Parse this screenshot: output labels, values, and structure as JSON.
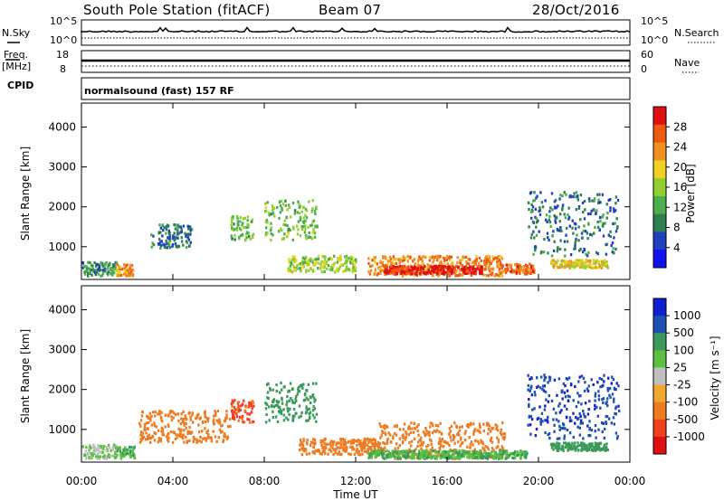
{
  "header": {
    "station": "South Pole Station (fitACF)",
    "beam": "Beam 07",
    "date": "28/Oct/2016"
  },
  "nsky_panel": {
    "left_label": "N.Sky",
    "left_ticks": [
      "10^5",
      "10^0"
    ],
    "right_label": "N.Search",
    "right_ticks": [
      "10^5",
      "10^0"
    ]
  },
  "freq_panel": {
    "left_label_top": "Freq.",
    "left_label_bottom": "[MHz]",
    "left_ticks": [
      "18",
      "8"
    ],
    "right_label": "Nave",
    "right_ticks": [
      "60",
      "0"
    ]
  },
  "cpid_panel": {
    "label": "CPID",
    "text": "normalsound (fast) 157 RF"
  },
  "x_axis": {
    "label": "Time UT",
    "ticks": [
      "00:00",
      "04:00",
      "08:00",
      "12:00",
      "16:00",
      "20:00",
      "00:00"
    ]
  },
  "colors": {
    "power": [
      "#1010f0",
      "#2040c0",
      "#2f7f4f",
      "#4cae4c",
      "#90d030",
      "#f0d020",
      "#f09020",
      "#f05a10",
      "#e01010"
    ],
    "velocity": [
      "#e01010",
      "#f04020",
      "#f07a20",
      "#f0a830",
      "#c0c0c0",
      "#5cc040",
      "#3a9a5a",
      "#2050b0",
      "#1020d0"
    ]
  },
  "chart_data": [
    {
      "type": "heatmap",
      "ylabel": "Slant Range [km]",
      "xlabel": "",
      "ylim": [
        180,
        4600
      ],
      "y_ticks": [
        "1000",
        "2000",
        "3000",
        "4000"
      ],
      "y_tick_values": [
        1000,
        2000,
        3000,
        4000
      ],
      "colorbar": {
        "label": "Power [dB]",
        "ticks": [
          "4",
          "8",
          "12",
          "16",
          "20",
          "24",
          "28"
        ],
        "range": [
          0,
          32
        ]
      },
      "regions": [
        {
          "t": [
            0.0,
            1.5
          ],
          "r": [
            300,
            650
          ],
          "value": 10
        },
        {
          "t": [
            1.5,
            2.3
          ],
          "r": [
            300,
            600
          ],
          "value": 24
        },
        {
          "t": [
            3.0,
            4.8
          ],
          "r": [
            1000,
            1600
          ],
          "value": 8
        },
        {
          "t": [
            6.5,
            7.5
          ],
          "r": [
            1200,
            1800
          ],
          "value": 14
        },
        {
          "t": [
            8.0,
            10.3
          ],
          "r": [
            1200,
            2200
          ],
          "value": 14
        },
        {
          "t": [
            9.0,
            12.0
          ],
          "r": [
            400,
            800
          ],
          "value": 16
        },
        {
          "t": [
            12.5,
            18.5
          ],
          "r": [
            300,
            800
          ],
          "value": 24
        },
        {
          "t": [
            13.2,
            17.5
          ],
          "r": [
            350,
            550
          ],
          "value": 30
        },
        {
          "t": [
            18.5,
            19.8
          ],
          "r": [
            350,
            600
          ],
          "value": 26
        },
        {
          "t": [
            19.5,
            23.5
          ],
          "r": [
            800,
            2400
          ],
          "value": 8
        },
        {
          "t": [
            20.5,
            23.0
          ],
          "r": [
            500,
            700
          ],
          "value": 20
        }
      ]
    },
    {
      "type": "heatmap",
      "ylabel": "Slant Range [km]",
      "xlabel": "Time UT",
      "ylim": [
        180,
        4600
      ],
      "y_ticks": [
        "1000",
        "2000",
        "3000",
        "4000"
      ],
      "y_tick_values": [
        1000,
        2000,
        3000,
        4000
      ],
      "colorbar": {
        "label": "Velocity [m s⁻¹]",
        "ticks": [
          "1000",
          "500",
          "100",
          "25",
          "-25",
          "-100",
          "-500",
          "-1000"
        ]
      },
      "regions": [
        {
          "t": [
            0.0,
            1.5
          ],
          "r": [
            300,
            650
          ],
          "value": 25
        },
        {
          "t": [
            1.5,
            2.3
          ],
          "r": [
            300,
            600
          ],
          "value": 100
        },
        {
          "t": [
            2.5,
            6.5
          ],
          "r": [
            700,
            1500
          ],
          "value": -300
        },
        {
          "t": [
            6.5,
            7.5
          ],
          "r": [
            1200,
            1800
          ],
          "value": -600
        },
        {
          "t": [
            8.0,
            10.3
          ],
          "r": [
            1200,
            2200
          ],
          "value": 200
        },
        {
          "t": [
            9.5,
            13.0
          ],
          "r": [
            400,
            800
          ],
          "value": -200
        },
        {
          "t": [
            13.0,
            18.5
          ],
          "r": [
            300,
            1200
          ],
          "value": -300
        },
        {
          "t": [
            12.5,
            19.5
          ],
          "r": [
            300,
            500
          ],
          "value": 100
        },
        {
          "t": [
            19.5,
            23.5
          ],
          "r": [
            800,
            2400
          ],
          "value": 900
        },
        {
          "t": [
            20.5,
            23.0
          ],
          "r": [
            500,
            700
          ],
          "value": 150
        }
      ]
    }
  ]
}
